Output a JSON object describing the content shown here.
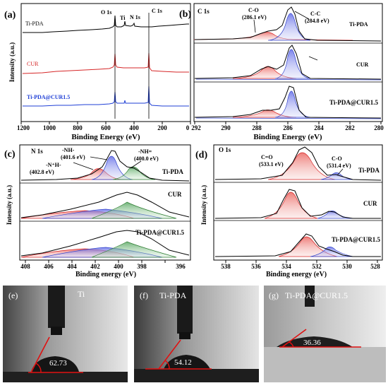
{
  "figure": {
    "panel_a": {
      "label": "(a)",
      "xlabel": "Binding Energy (eV)",
      "ylabel": "Intensity (a.u.)",
      "xticks": [
        "1200",
        "1000",
        "800",
        "600",
        "400",
        "200",
        "0"
      ],
      "peaks": [
        "O 1s",
        "Ti",
        "N 1s",
        "C 1s"
      ],
      "series": [
        {
          "name": "Ti-PDA",
          "color": "#000000"
        },
        {
          "name": "CUR",
          "color": "#d62728"
        },
        {
          "name": "Ti-PDA@CUR1.5",
          "color": "#1f3fd6"
        }
      ]
    },
    "panel_b": {
      "label": "(b)",
      "region": "C 1s",
      "xlabel": "Binding Energy (eV)",
      "xticks": [
        "292",
        "290",
        "288",
        "286",
        "284",
        "282",
        "280"
      ],
      "peak_labels": [
        {
          "name": "C-O",
          "value": "(286.1 eV)"
        },
        {
          "name": "C-C",
          "value": "(284.8 eV)"
        }
      ],
      "sample_labels": [
        "Ti-PDA",
        "CUR",
        "Ti-PDA@CUR1.5"
      ]
    },
    "panel_c": {
      "label": "(c)",
      "region": "N 1s",
      "xlabel": "Binding energy (eV)",
      "ylabel": "Intensity (a.u.)",
      "xticks": [
        "408",
        "406",
        "404",
        "402",
        "400",
        "398",
        "396"
      ],
      "peak_labels": [
        {
          "name": "-N⁺H-",
          "value": "(402.8 eV)"
        },
        {
          "name": "-NH-",
          "value": "(401.6 eV)"
        },
        {
          "name": "-NH=",
          "value": "(400.0 eV)"
        }
      ],
      "sample_labels": [
        "Ti-PDA",
        "CUR",
        "Ti-PDA@CUR1.5"
      ]
    },
    "panel_d": {
      "label": "(d)",
      "region": "O 1s",
      "xlabel": "Binding energy (eV)",
      "ylabel": "Intensity (a.u.)",
      "xticks": [
        "538",
        "536",
        "534",
        "532",
        "530",
        "528"
      ],
      "peak_labels": [
        {
          "name": "C=O",
          "value": "(533.1 eV)"
        },
        {
          "name": "C-O",
          "value": "(531.4 eV)"
        }
      ],
      "sample_labels": [
        "Ti-PDA",
        "CUR",
        "Ti-PDA@CUR1.5"
      ]
    },
    "contact_angles": [
      {
        "label": "(e)",
        "sample": "Ti",
        "angle": "62.73"
      },
      {
        "label": "(f)",
        "sample": "Ti-PDA",
        "angle": "54.12"
      },
      {
        "label": "(g)",
        "sample": "Ti-PDA@CUR1.5",
        "angle": "36.36"
      }
    ]
  },
  "chart_data": [
    {
      "type": "line",
      "xlabel": "Binding Energy (eV)",
      "ylabel": "Intensity (a.u.)",
      "xlim": [
        1200,
        0
      ],
      "series": [
        {
          "name": "Ti-PDA",
          "peaks_eV": [
            531,
            458,
            400,
            285
          ]
        },
        {
          "name": "CUR",
          "peaks_eV": [
            531,
            285
          ]
        },
        {
          "name": "Ti-PDA@CUR1.5",
          "peaks_eV": [
            531,
            458,
            400,
            285
          ]
        }
      ]
    },
    {
      "type": "line",
      "xlabel": "Binding Energy (eV)",
      "xlim": [
        292,
        280
      ],
      "components_eV": [
        286.1,
        284.8
      ]
    },
    {
      "type": "line",
      "xlabel": "Binding energy (eV)",
      "ylabel": "Intensity (a.u.)",
      "xlim": [
        409,
        395
      ],
      "components_eV": [
        402.8,
        401.6,
        400.0
      ]
    },
    {
      "type": "line",
      "xlabel": "Binding energy (eV)",
      "ylabel": "Intensity (a.u.)",
      "xlim": [
        539,
        528
      ],
      "components_eV": [
        533.1,
        531.4
      ]
    }
  ]
}
